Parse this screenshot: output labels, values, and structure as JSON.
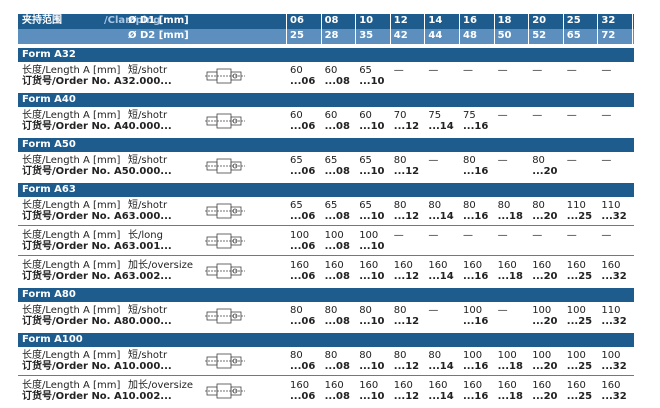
{
  "header": {
    "clamping_cn": "夹持范围",
    "clamping_en": "/Clamping",
    "d1_label": "Ø D1 [mm]",
    "d2_label": "Ø D2 [mm]",
    "d1": [
      "06",
      "08",
      "10",
      "12",
      "14",
      "16",
      "18",
      "20",
      "25",
      "32"
    ],
    "d2": [
      "25",
      "28",
      "35",
      "42",
      "44",
      "48",
      "50",
      "52",
      "65",
      "72"
    ]
  },
  "sections": [
    {
      "title": "Form A32",
      "rows": [
        {
          "length_label": "长度/Length A [mm]",
          "variant": "短/shotr",
          "order_label": "订货号/Order No. A32.000...",
          "lengths": [
            "60",
            "60",
            "65",
            "—",
            "—",
            "—",
            "—",
            "—",
            "—",
            "—"
          ],
          "orders": [
            "...06",
            "...08",
            "...10",
            null,
            null,
            null,
            null,
            null,
            null,
            null
          ]
        }
      ]
    },
    {
      "title": "Form A40",
      "rows": [
        {
          "length_label": "长度/Length A [mm]",
          "variant": "短/shotr",
          "order_label": "订货号/Order No. A40.000...",
          "lengths": [
            "60",
            "60",
            "60",
            "70",
            "75",
            "75",
            "—",
            "—",
            "—",
            "—"
          ],
          "orders": [
            "...06",
            "...08",
            "...10",
            "...12",
            "...14",
            "...16",
            null,
            null,
            null,
            null
          ]
        }
      ]
    },
    {
      "title": "Form A50",
      "rows": [
        {
          "length_label": "长度/Length A [mm]",
          "variant": "短/shotr",
          "order_label": "订货号/Order No. A50.000...",
          "lengths": [
            "65",
            "65",
            "65",
            "80",
            "—",
            "80",
            "—",
            "80",
            "—",
            "—"
          ],
          "orders": [
            "...06",
            "...08",
            "...10",
            "...12",
            null,
            "...16",
            null,
            "...20",
            null,
            null
          ]
        }
      ]
    },
    {
      "title": "Form A63",
      "rows": [
        {
          "length_label": "长度/Length A [mm]",
          "variant": "短/shotr",
          "order_label": "订货号/Order No. A63.000...",
          "lengths": [
            "65",
            "65",
            "65",
            "80",
            "80",
            "80",
            "80",
            "80",
            "110",
            "110"
          ],
          "orders": [
            "...06",
            "...08",
            "...10",
            "...12",
            "...14",
            "...16",
            "...18",
            "...20",
            "...25",
            "...32"
          ]
        },
        {
          "length_label": "长度/Length A [mm]",
          "variant": "长/long",
          "order_label": "订货号/Order No. A63.001...",
          "lengths": [
            "100",
            "100",
            "100",
            "—",
            "—",
            "—",
            "—",
            "—",
            "—",
            "—"
          ],
          "orders": [
            "...06",
            "...08",
            "...10",
            null,
            null,
            null,
            null,
            null,
            null,
            null
          ]
        },
        {
          "length_label": "长度/Length A [mm]",
          "variant": "加长/oversize",
          "order_label": "订货号/Order No. A63.002...",
          "lengths": [
            "160",
            "160",
            "160",
            "160",
            "160",
            "160",
            "160",
            "160",
            "160",
            "160"
          ],
          "orders": [
            "...06",
            "...08",
            "...10",
            "...12",
            "...14",
            "...16",
            "...18",
            "...20",
            "...25",
            "...32"
          ]
        }
      ]
    },
    {
      "title": "Form A80",
      "rows": [
        {
          "length_label": "长度/Length A [mm]",
          "variant": "短/shotr",
          "order_label": "订货号/Order No. A80.000...",
          "lengths": [
            "80",
            "80",
            "80",
            "80",
            "—",
            "100",
            "—",
            "100",
            "100",
            "110"
          ],
          "orders": [
            "...06",
            "...08",
            "...10",
            "...12",
            null,
            "...16",
            null,
            "...20",
            "...25",
            "...32"
          ]
        }
      ]
    },
    {
      "title": "Form A100",
      "rows": [
        {
          "length_label": "长度/Length A [mm]",
          "variant": "短/shotr",
          "order_label": "订货号/Order No. A10.000...",
          "lengths": [
            "80",
            "80",
            "80",
            "80",
            "80",
            "100",
            "100",
            "100",
            "100",
            "100"
          ],
          "orders": [
            "...06",
            "...08",
            "...10",
            "...12",
            "...14",
            "...16",
            "...18",
            "...20",
            "...25",
            "...32"
          ]
        },
        {
          "length_label": "长度/Length A [mm]",
          "variant": "加长/oversize",
          "order_label": "订货号/Order No. A10.002...",
          "lengths": [
            "160",
            "160",
            "160",
            "160",
            "160",
            "160",
            "160",
            "160",
            "160",
            "160"
          ],
          "orders": [
            "...06",
            "...08",
            "...10",
            "...12",
            "...14",
            "...16",
            "...18",
            "...20",
            "...25",
            "...32"
          ]
        }
      ]
    }
  ]
}
